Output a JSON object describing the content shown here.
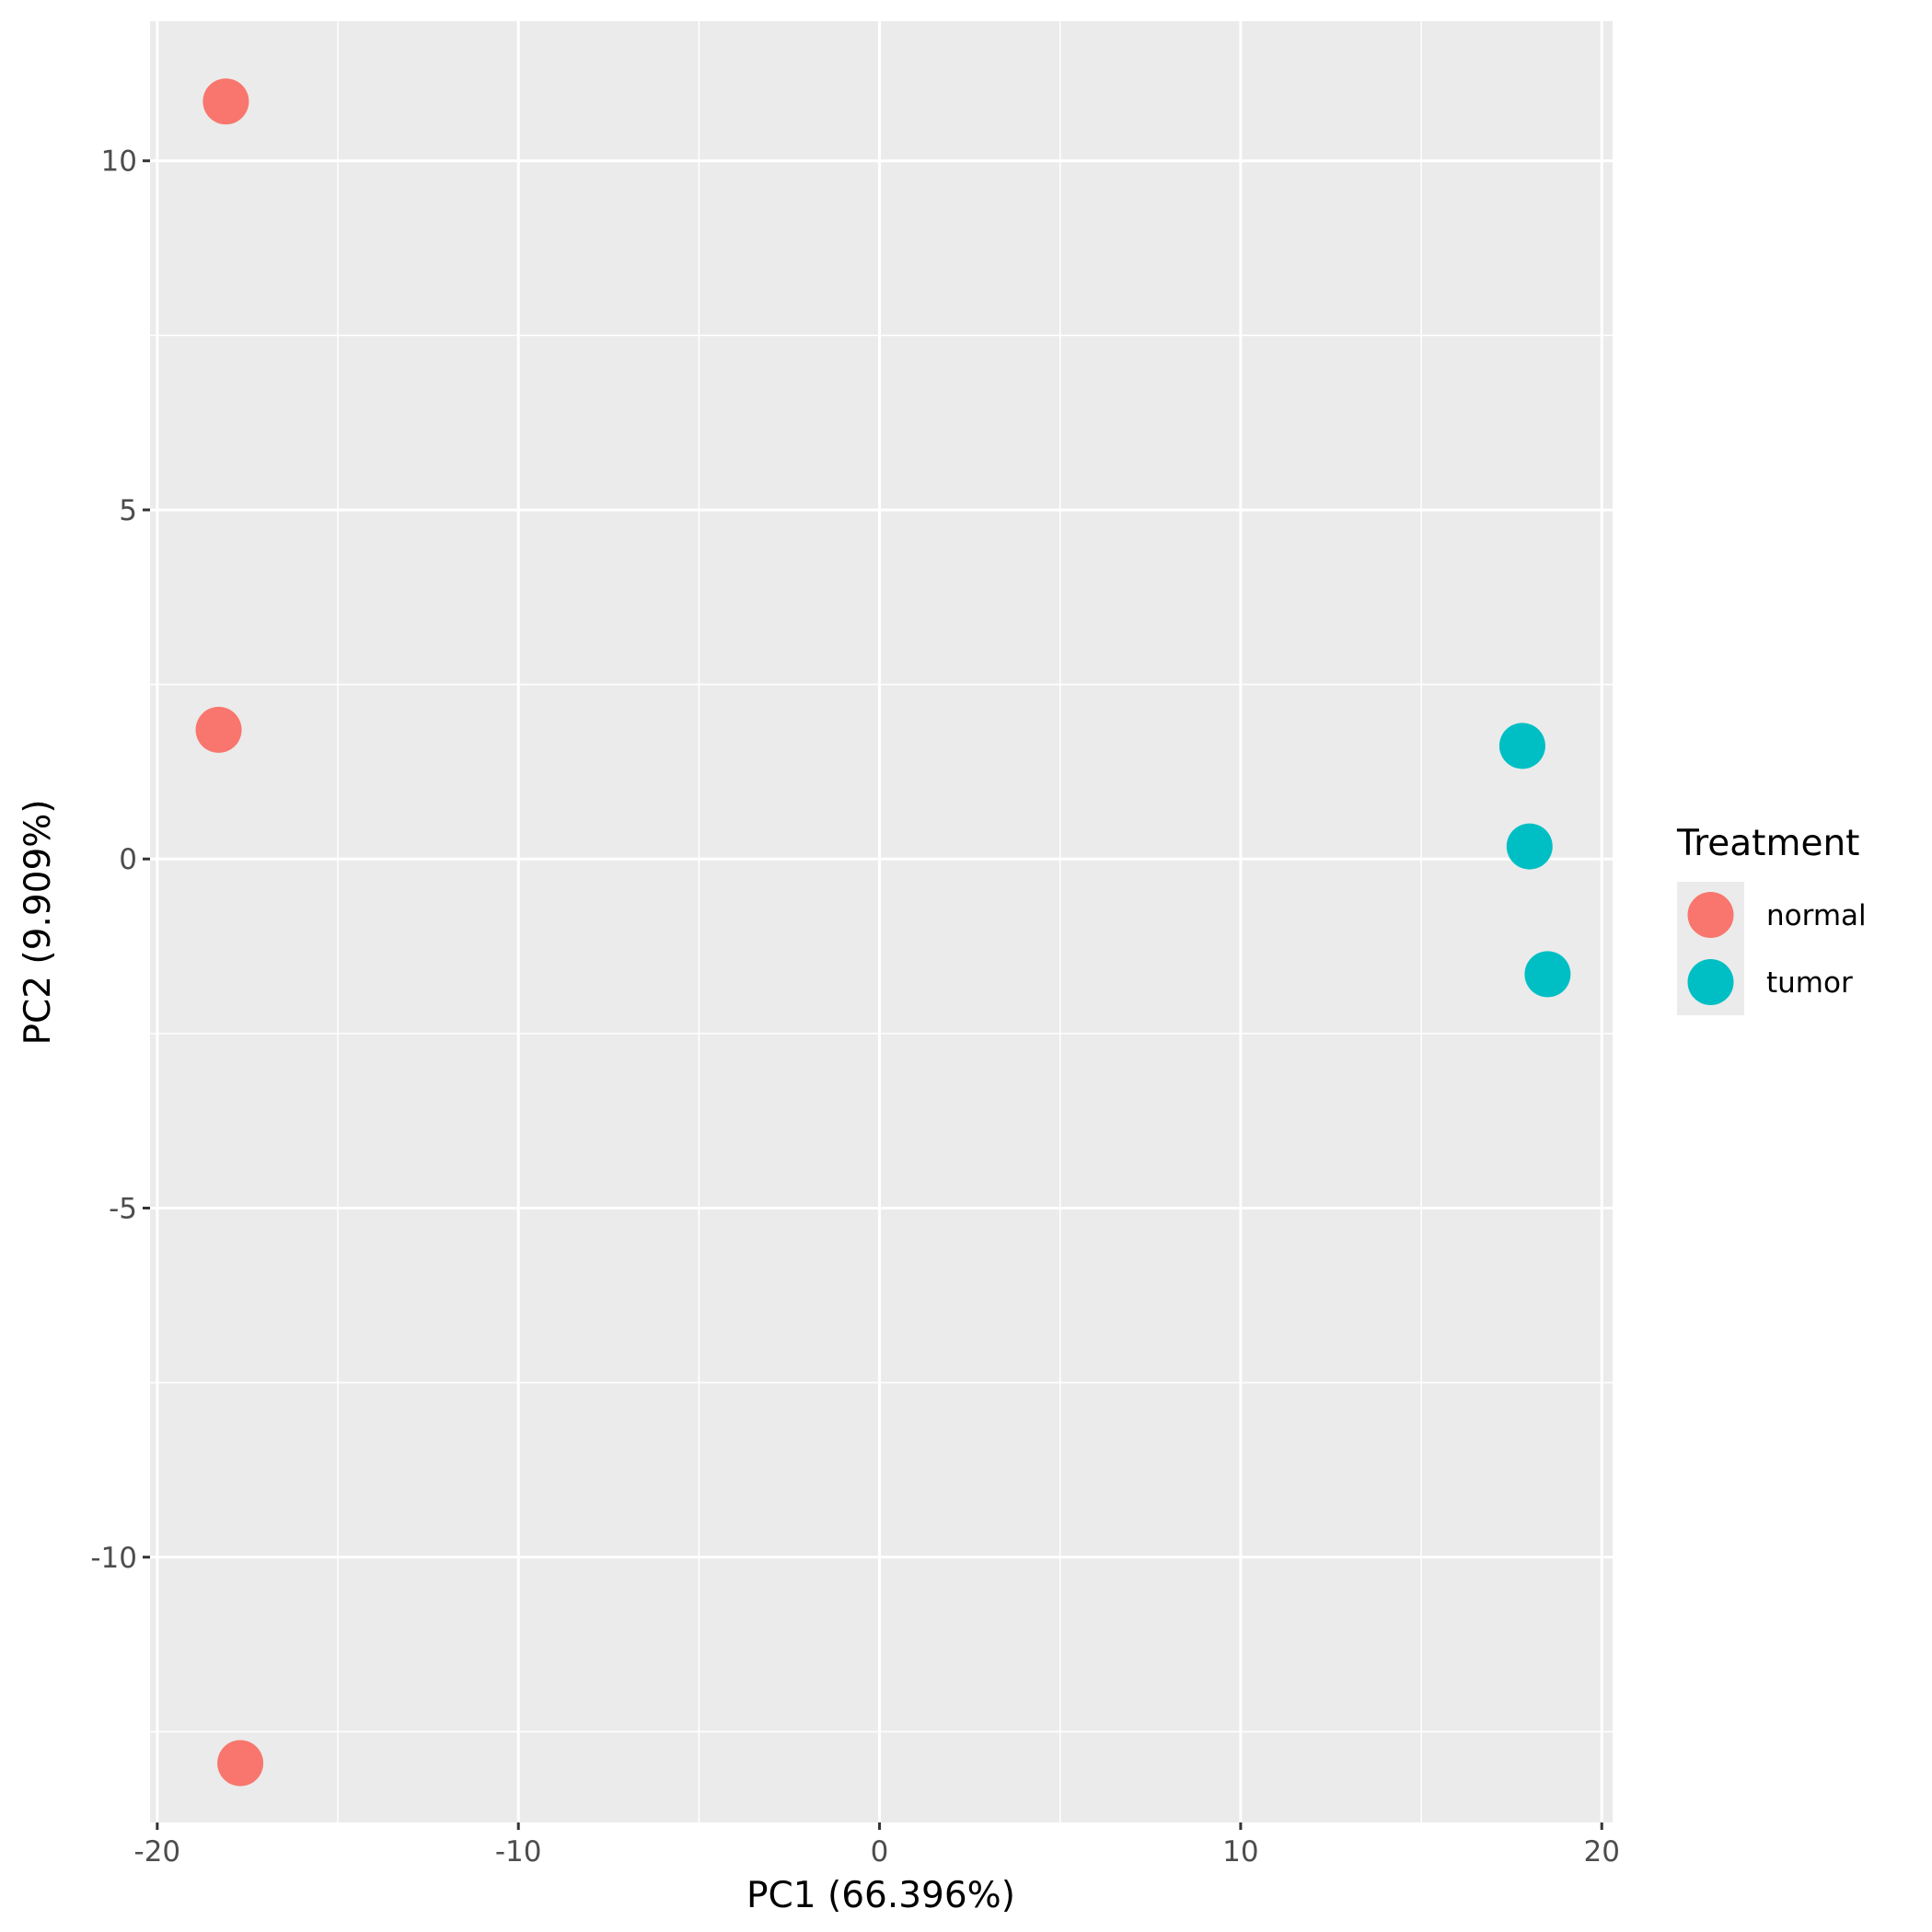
{
  "chart_data": {
    "type": "scatter",
    "xlabel": "PC1 (66.396%)",
    "ylabel": "PC2 (9.909%)",
    "xlim": [
      -20.2,
      20.3
    ],
    "ylim": [
      -13.8,
      12.0
    ],
    "x_ticks": [
      -20,
      -10,
      0,
      10,
      20
    ],
    "x_tick_labels": [
      "-20",
      "-10",
      "0",
      "10",
      "20"
    ],
    "x_minor_ticks": [
      -15,
      -5,
      5,
      15
    ],
    "y_ticks": [
      -10,
      -5,
      0,
      5,
      10
    ],
    "y_tick_labels": [
      "-10",
      "-5",
      "0",
      "5",
      "10"
    ],
    "y_minor_ticks": [
      -12.5,
      -7.5,
      -2.5,
      2.5,
      7.5
    ],
    "grid": true,
    "legend": {
      "title": "Treatment",
      "placement": "right",
      "entries": [
        "normal",
        "tumor"
      ]
    },
    "series": [
      {
        "name": "normal",
        "color": "#F8766D",
        "points": [
          {
            "x": -18.1,
            "y": 10.85
          },
          {
            "x": -18.3,
            "y": 1.85
          },
          {
            "x": -17.7,
            "y": -12.95
          }
        ]
      },
      {
        "name": "tumor",
        "color": "#00BFC4",
        "points": [
          {
            "x": 17.8,
            "y": 1.62
          },
          {
            "x": 18.0,
            "y": 0.18
          },
          {
            "x": 18.5,
            "y": -1.65
          }
        ]
      }
    ]
  }
}
